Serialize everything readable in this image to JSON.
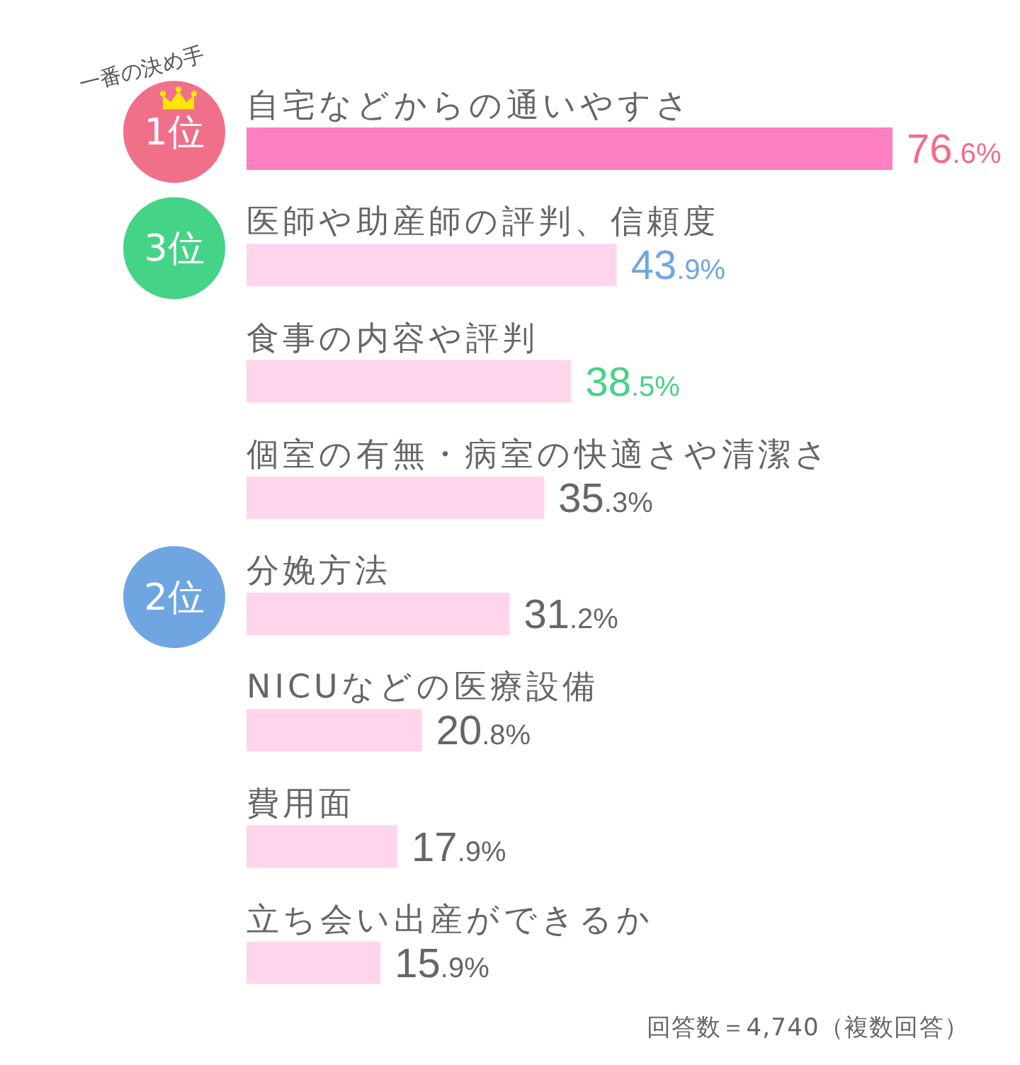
{
  "chart_data": {
    "type": "bar",
    "orientation": "horizontal",
    "categories": [
      "自宅などからの通いやすさ",
      "医師や助産師の評判、信頼度",
      "食事の内容や評判",
      "個室の有無・病室の快適さや清潔さ",
      "分娩方法",
      "NICUなどの医療設備",
      "費用面",
      "立ち会い出産ができるか"
    ],
    "values": [
      76.6,
      43.9,
      38.5,
      35.3,
      31.2,
      20.8,
      17.9,
      15.9
    ],
    "colors": [
      "#ff80c0",
      "#ffd5ec",
      "#ffd5ec",
      "#ffd5ec",
      "#ffd5ec",
      "#ffd5ec",
      "#ffd5ec",
      "#ffd5ec"
    ],
    "value_labels": [
      "76.6%",
      "43.9%",
      "38.5%",
      "35.3%",
      "31.2%",
      "20.8%",
      "17.9%",
      "15.9%"
    ],
    "annotations": [
      "一番の決め手",
      "1位",
      "3位",
      "2位",
      "回答数＝4,740（複数回答）"
    ],
    "tick_labels": "y"
  }
}
